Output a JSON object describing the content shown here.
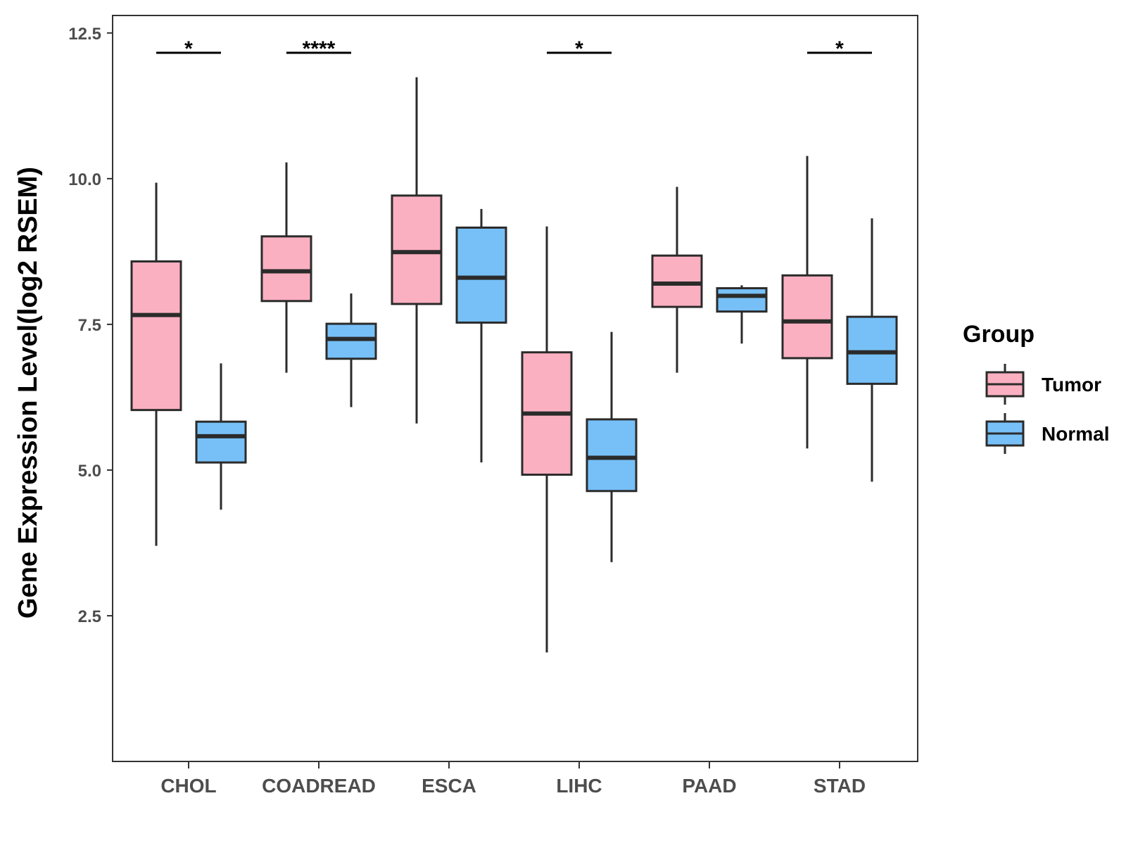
{
  "chart_data": {
    "type": "boxplot",
    "title": "",
    "xlabel": "",
    "ylabel": "Gene Expression Level(log2 RSEM)",
    "ylim": [
      0.0,
      12.8
    ],
    "yticks": [
      2.5,
      5.0,
      7.5,
      10.0,
      12.5
    ],
    "ytick_labels": [
      "2.5",
      "5.0",
      "7.5",
      "10.0",
      "12.5"
    ],
    "categories": [
      "CHOL",
      "COADREAD",
      "ESCA",
      "LIHC",
      "PAAD",
      "STAD"
    ],
    "series": [
      {
        "name": "Tumor",
        "color": "#FBB0C1",
        "boxes": [
          {
            "min": 3.7,
            "q1": 6.03,
            "median": 7.66,
            "q3": 8.58,
            "max": 9.93
          },
          {
            "min": 6.67,
            "q1": 7.9,
            "median": 8.41,
            "q3": 9.01,
            "max": 10.28
          },
          {
            "min": 5.8,
            "q1": 7.85,
            "median": 8.74,
            "q3": 9.71,
            "max": 11.74
          },
          {
            "min": 1.87,
            "q1": 4.92,
            "median": 5.97,
            "q3": 7.02,
            "max": 9.18
          },
          {
            "min": 6.67,
            "q1": 7.8,
            "median": 8.2,
            "q3": 8.68,
            "max": 9.86
          },
          {
            "min": 5.37,
            "q1": 6.92,
            "median": 7.55,
            "q3": 8.34,
            "max": 10.39
          }
        ]
      },
      {
        "name": "Normal",
        "color": "#77C0F7",
        "boxes": [
          {
            "min": 4.32,
            "q1": 5.13,
            "median": 5.58,
            "q3": 5.83,
            "max": 6.83
          },
          {
            "min": 6.08,
            "q1": 6.91,
            "median": 7.25,
            "q3": 7.51,
            "max": 8.03
          },
          {
            "min": 5.13,
            "q1": 7.53,
            "median": 8.3,
            "q3": 9.16,
            "max": 9.48
          },
          {
            "min": 3.42,
            "q1": 4.64,
            "median": 5.21,
            "q3": 5.87,
            "max": 7.37
          },
          {
            "min": 7.17,
            "q1": 7.72,
            "median": 7.99,
            "q3": 8.12,
            "max": 8.17
          },
          {
            "min": 4.8,
            "q1": 6.48,
            "median": 7.02,
            "q3": 7.63,
            "max": 9.32
          }
        ]
      }
    ],
    "significance": [
      {
        "category": "CHOL",
        "label": "*"
      },
      {
        "category": "COADREAD",
        "label": "****"
      },
      {
        "category": "ESCA",
        "label": ""
      },
      {
        "category": "LIHC",
        "label": "*"
      },
      {
        "category": "PAAD",
        "label": ""
      },
      {
        "category": "STAD",
        "label": "*"
      }
    ],
    "legend": {
      "title": "Group",
      "position": "right",
      "entries": [
        "Tumor",
        "Normal"
      ]
    },
    "grid": false
  }
}
